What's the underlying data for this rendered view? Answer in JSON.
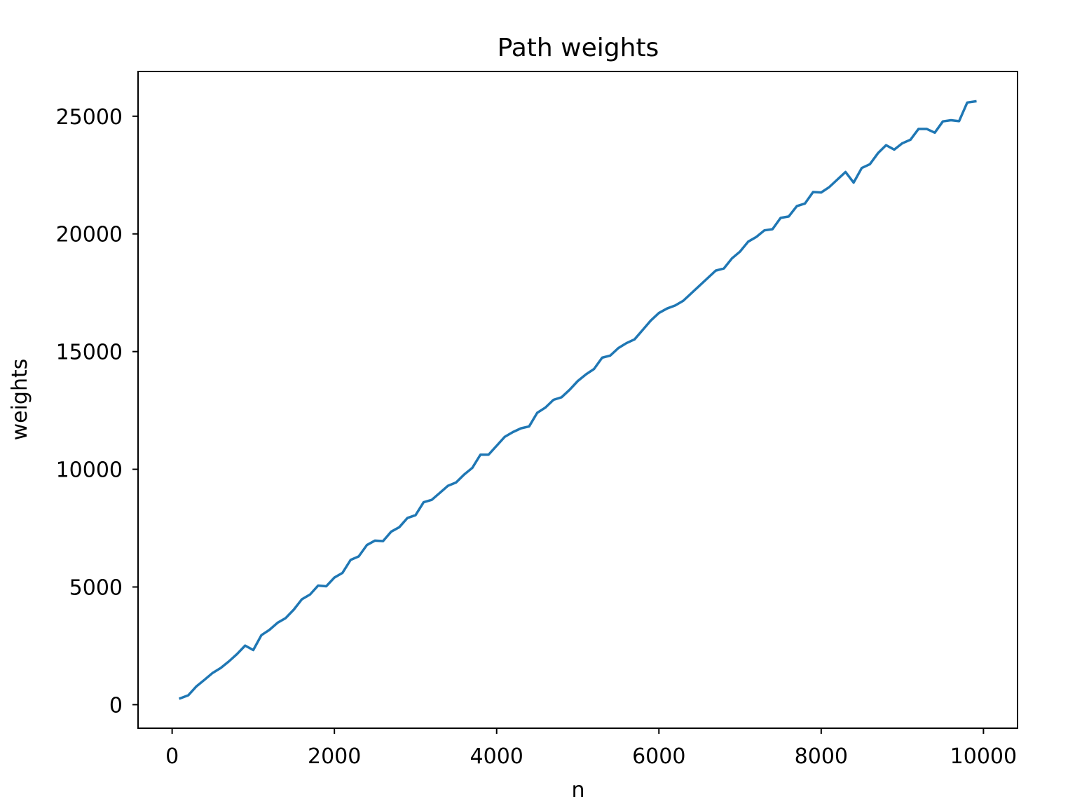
{
  "chart_data": {
    "type": "line",
    "title": "Path weights",
    "xlabel": "n",
    "ylabel": "weights",
    "xlim": [
      -420,
      10420
    ],
    "ylim": [
      -1000,
      26900
    ],
    "xticks": [
      0,
      2000,
      4000,
      6000,
      8000,
      10000
    ],
    "yticks": [
      0,
      5000,
      10000,
      15000,
      20000,
      25000
    ],
    "grid": false,
    "line_color": "#1f77b4",
    "series": [
      {
        "x": [
          100,
          200,
          300,
          400,
          500,
          600,
          700,
          800,
          900,
          1000,
          1100,
          1200,
          1300,
          1400,
          1500,
          1600,
          1700,
          1800,
          1900,
          2000,
          2100,
          2200,
          2300,
          2400,
          2500,
          2600,
          2700,
          2800,
          2900,
          3000,
          3100,
          3200,
          3300,
          3400,
          3500,
          3600,
          3700,
          3800,
          3900,
          4000,
          4100,
          4200,
          4300,
          4400,
          4500,
          4600,
          4700,
          4800,
          4900,
          5000,
          5100,
          5200,
          5300,
          5400,
          5500,
          5600,
          5700,
          5800,
          5900,
          6000,
          6100,
          6200,
          6300,
          6400,
          6500,
          6600,
          6700,
          6800,
          6900,
          7000,
          7100,
          7200,
          7300,
          7400,
          7500,
          7600,
          7700,
          7800,
          7900,
          8000,
          8100,
          8200,
          8300,
          8400,
          8500,
          8600,
          8700,
          8800,
          8900,
          9000,
          9100,
          9200,
          9300,
          9400,
          9500,
          9600,
          9700,
          9800,
          9900
        ],
        "values": [
          270,
          400,
          780,
          1060,
          1350,
          1560,
          1840,
          2150,
          2510,
          2320,
          2950,
          3180,
          3480,
          3680,
          4040,
          4480,
          4680,
          5060,
          5030,
          5400,
          5600,
          6150,
          6300,
          6780,
          6970,
          6950,
          7350,
          7540,
          7930,
          8050,
          8600,
          8700,
          9000,
          9300,
          9440,
          9780,
          10060,
          10620,
          10620,
          11000,
          11380,
          11580,
          11740,
          11820,
          12400,
          12620,
          12950,
          13060,
          13380,
          13750,
          14030,
          14260,
          14740,
          14830,
          15150,
          15360,
          15520,
          15920,
          16320,
          16640,
          16830,
          16960,
          17160,
          17480,
          17800,
          18120,
          18440,
          18530,
          18960,
          19250,
          19670,
          19870,
          20150,
          20200,
          20680,
          20740,
          21180,
          21290,
          21780,
          21760,
          21990,
          22310,
          22630,
          22180,
          22800,
          22960,
          23430,
          23770,
          23580,
          23850,
          24000,
          24460,
          24460,
          24300,
          24780,
          24830,
          24790,
          25580,
          25630
        ]
      }
    ]
  }
}
